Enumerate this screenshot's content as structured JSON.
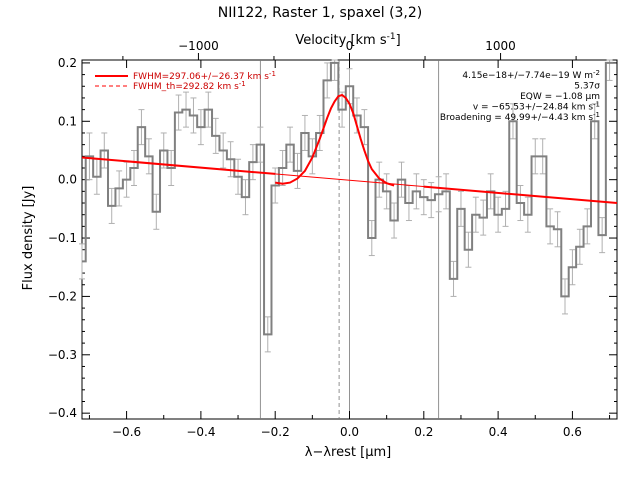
{
  "chart_data": {
    "type": "line",
    "title": "NII122, Raster 1, spaxel (3,2)",
    "xlabel": "λ−λrest [μm]",
    "ylabel": "Flux density [Jy]",
    "top_xlabel": "Velocity [km s-1]",
    "xlim": [
      -0.72,
      0.72
    ],
    "ylim": [
      -0.41,
      0.205
    ],
    "x_ticks": [
      -0.6,
      -0.4,
      -0.2,
      0.0,
      0.2,
      0.4,
      0.6
    ],
    "x_tick_labels": [
      "−0.6",
      "−0.4",
      "−0.2",
      "0.0",
      "0.2",
      "0.4",
      "0.6"
    ],
    "y_ticks": [
      -0.4,
      -0.3,
      -0.2,
      -0.1,
      0.0,
      0.1,
      0.2
    ],
    "y_tick_labels": [
      "−0.4",
      "−0.3",
      "−0.2",
      "−0.1",
      "0.0",
      "0.1",
      "0.2"
    ],
    "top_ticks": [
      -1000,
      0,
      1000
    ],
    "top_tick_labels": [
      "−1000",
      "0",
      "1000"
    ],
    "vlines_solid": [
      -0.24,
      0.0,
      0.24
    ],
    "vline_dashed": -0.028,
    "series": [
      {
        "name": "data",
        "style": "steps",
        "color": "#808080",
        "x": [
          -0.72,
          -0.7,
          -0.68,
          -0.66,
          -0.64,
          -0.62,
          -0.6,
          -0.58,
          -0.56,
          -0.54,
          -0.52,
          -0.5,
          -0.48,
          -0.46,
          -0.44,
          -0.42,
          -0.4,
          -0.38,
          -0.36,
          -0.34,
          -0.32,
          -0.3,
          -0.28,
          -0.26,
          -0.24,
          -0.22,
          -0.2,
          -0.18,
          -0.16,
          -0.14,
          -0.12,
          -0.1,
          -0.08,
          -0.06,
          -0.04,
          -0.02,
          0.0,
          0.02,
          0.04,
          0.06,
          0.08,
          0.1,
          0.12,
          0.14,
          0.16,
          0.18,
          0.2,
          0.22,
          0.24,
          0.26,
          0.28,
          0.3,
          0.32,
          0.34,
          0.36,
          0.38,
          0.4,
          0.42,
          0.44,
          0.46,
          0.48,
          0.5,
          0.52,
          0.54,
          0.56,
          0.58,
          0.6,
          0.62,
          0.64,
          0.66,
          0.68,
          0.7
        ],
        "y": [
          -0.14,
          0.04,
          0.005,
          0.05,
          -0.045,
          -0.015,
          0.0,
          0.02,
          0.09,
          0.04,
          -0.055,
          0.05,
          0.02,
          0.115,
          0.12,
          0.11,
          0.09,
          0.12,
          0.075,
          0.05,
          0.035,
          0.005,
          -0.03,
          0.03,
          0.06,
          -0.265,
          -0.01,
          0.02,
          0.06,
          0.015,
          0.08,
          0.04,
          0.08,
          0.17,
          0.2,
          0.12,
          0.16,
          0.11,
          0.09,
          -0.1,
          0.0,
          -0.02,
          -0.07,
          0.0,
          -0.04,
          -0.02,
          -0.03,
          -0.035,
          -0.025,
          -0.02,
          -0.17,
          -0.05,
          -0.12,
          -0.06,
          -0.065,
          -0.02,
          -0.06,
          -0.05,
          0.1,
          -0.04,
          -0.06,
          0.04,
          0.04,
          -0.08,
          -0.085,
          -0.2,
          -0.15,
          -0.115,
          -0.08,
          0.1,
          -0.095,
          0.2
        ],
        "err": [
          0.03,
          0.04,
          0.03,
          0.03,
          0.03,
          0.03,
          0.03,
          0.03,
          0.03,
          0.03,
          0.03,
          0.03,
          0.03,
          0.03,
          0.03,
          0.03,
          0.03,
          0.03,
          0.03,
          0.03,
          0.03,
          0.03,
          0.03,
          0.03,
          0.03,
          0.03,
          0.03,
          0.03,
          0.03,
          0.03,
          0.03,
          0.03,
          0.03,
          0.03,
          0.03,
          0.03,
          0.03,
          0.03,
          0.03,
          0.03,
          0.03,
          0.03,
          0.03,
          0.03,
          0.03,
          0.03,
          0.03,
          0.03,
          0.03,
          0.03,
          0.03,
          0.03,
          0.03,
          0.03,
          0.03,
          0.03,
          0.03,
          0.03,
          0.03,
          0.03,
          0.03,
          0.03,
          0.03,
          0.03,
          0.03,
          0.03,
          0.03,
          0.03,
          0.03,
          0.03,
          0.03,
          0.03
        ]
      },
      {
        "name": "FWHM=297.06+/−26.37 km s-1",
        "style": "line",
        "color": "#ff0000",
        "x": [
          -0.2,
          -0.18,
          -0.16,
          -0.14,
          -0.12,
          -0.1,
          -0.08,
          -0.07,
          -0.06,
          -0.05,
          -0.04,
          -0.03,
          -0.02,
          -0.01,
          0.0,
          0.01,
          0.02,
          0.03,
          0.04,
          0.05,
          0.06,
          0.08,
          0.1,
          0.12
        ],
        "y": [
          -0.005,
          -0.007,
          -0.005,
          0.002,
          0.015,
          0.038,
          0.07,
          0.088,
          0.106,
          0.122,
          0.134,
          0.143,
          0.145,
          0.14,
          0.13,
          0.114,
          0.092,
          0.07,
          0.05,
          0.032,
          0.018,
          0.002,
          -0.006,
          -0.01
        ]
      },
      {
        "name": "FWHM_th=292.82 km s-1",
        "style": "dashed",
        "color": "#ff0000",
        "x": [],
        "y": []
      },
      {
        "name": "baseline",
        "style": "line",
        "color": "#ff0000",
        "x": [
          -0.72,
          0.72
        ],
        "y": [
          0.038,
          -0.04
        ]
      }
    ],
    "legend": [
      {
        "label": "FWHM=297.06+/−26.37 km s",
        "sup": "-1",
        "style": "solid"
      },
      {
        "label": "FWHM_th=292.82 km s",
        "sup": "-1",
        "style": "dashed"
      }
    ],
    "annotations": [
      {
        "text": "4.15e−18+/−7.74e−19 W m",
        "sup": "-2"
      },
      {
        "text": "5.37σ",
        "sup": ""
      },
      {
        "text": "EQW = −1.08 μm",
        "sup": ""
      },
      {
        "text": "v = −65.53+/−24.84 km s",
        "sup": "-1"
      },
      {
        "text": "Broadening = 49.99+/−4.43 km s",
        "sup": "-1"
      }
    ],
    "grid": false
  }
}
